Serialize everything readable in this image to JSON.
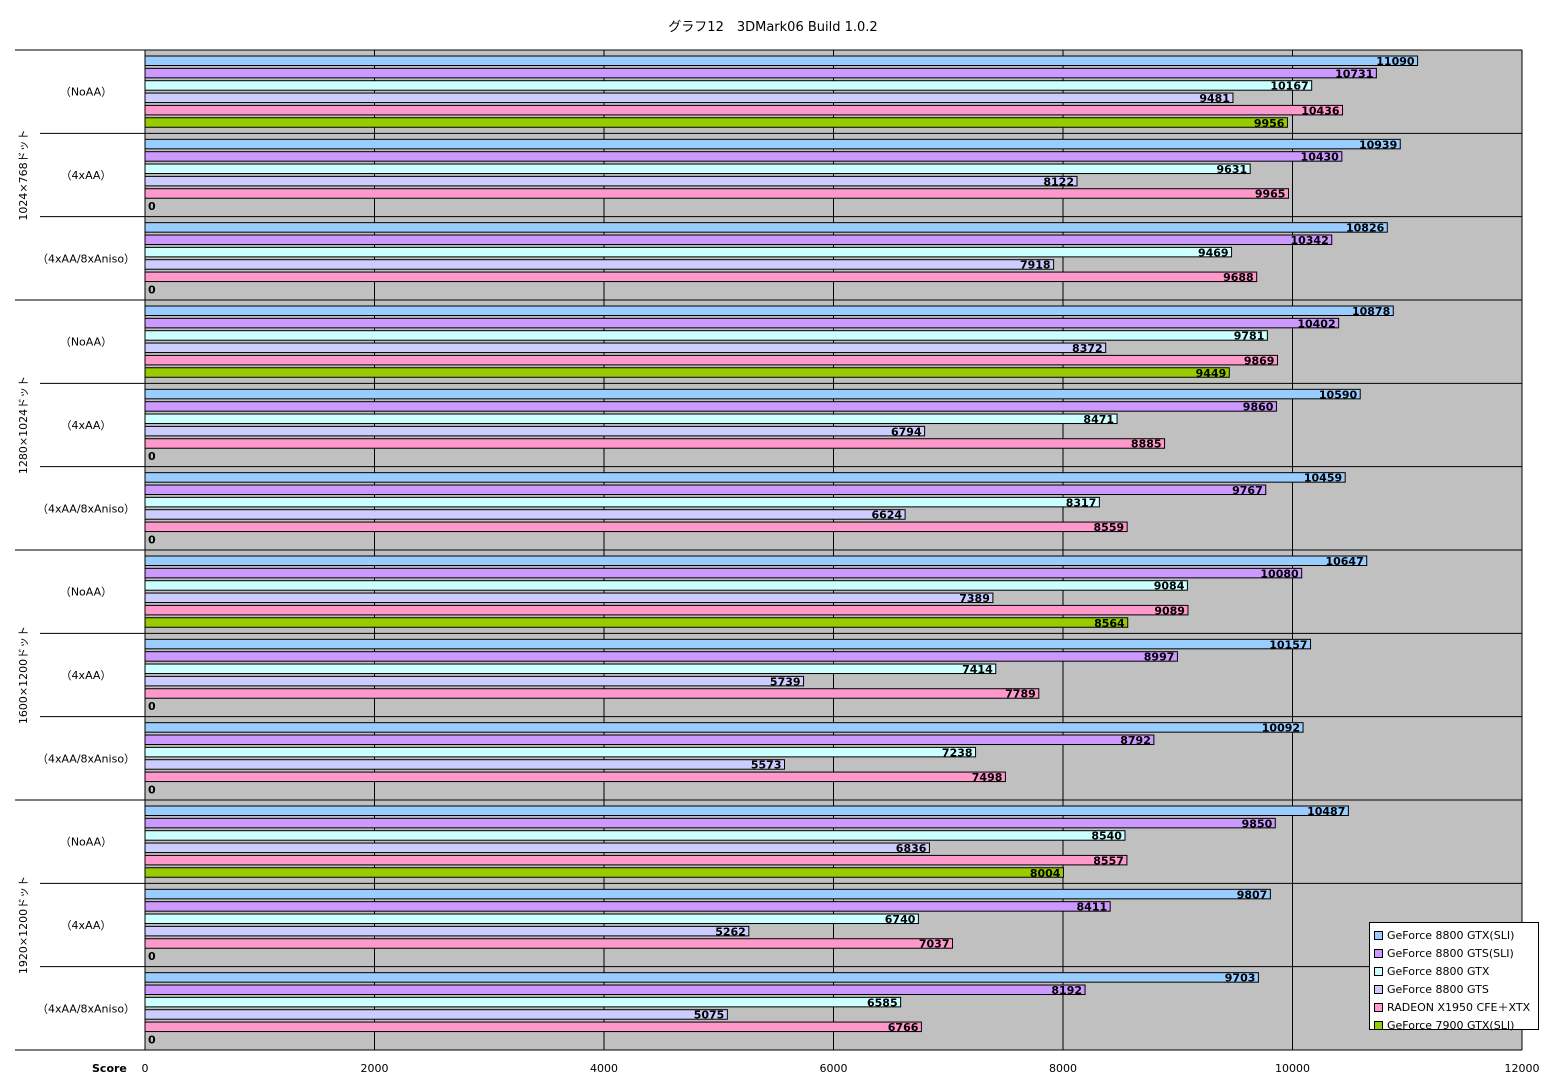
{
  "chart_data": {
    "type": "bar",
    "orientation": "horizontal",
    "title": "グラフ12　3DMark06 Build 1.0.2",
    "xlabel": "Score",
    "xlim": [
      0,
      12000
    ],
    "xticks": [
      0,
      2000,
      4000,
      6000,
      8000,
      10000,
      12000
    ],
    "grid": true,
    "legend_position": "bottom-right",
    "series": [
      {
        "name": "GeForce 8800 GTX(SLI)",
        "color": "#99ccff"
      },
      {
        "name": "GeForce 8800 GTS(SLI)",
        "color": "#cc99ff"
      },
      {
        "name": "GeForce 8800 GTX",
        "color": "#ccffff"
      },
      {
        "name": "GeForce 8800 GTS",
        "color": "#ccccff"
      },
      {
        "name": "RADEON X1950 CFE＋XTX",
        "color": "#ff99cc"
      },
      {
        "name": "GeForce 7900 GTX(SLI)",
        "color": "#99cc00"
      }
    ],
    "resolutions": [
      "1024×768ドット",
      "1280×1024ドット",
      "1600×1200ドット",
      "1920×1200ドット"
    ],
    "groups": [
      {
        "resolution": 0,
        "setting": "（NoAA）",
        "values": [
          11090,
          10731,
          10167,
          9481,
          10436,
          9956
        ]
      },
      {
        "resolution": 0,
        "setting": "（4xAA）",
        "values": [
          10939,
          10430,
          9631,
          8122,
          9965,
          0
        ]
      },
      {
        "resolution": 0,
        "setting": "（4xAA/8xAniso）",
        "values": [
          10826,
          10342,
          9469,
          7918,
          9688,
          0
        ]
      },
      {
        "resolution": 1,
        "setting": "（NoAA）",
        "values": [
          10878,
          10402,
          9781,
          8372,
          9869,
          9449
        ]
      },
      {
        "resolution": 1,
        "setting": "（4xAA）",
        "values": [
          10590,
          9860,
          8471,
          6794,
          8885,
          0
        ]
      },
      {
        "resolution": 1,
        "setting": "（4xAA/8xAniso）",
        "values": [
          10459,
          9767,
          8317,
          6624,
          8559,
          0
        ]
      },
      {
        "resolution": 2,
        "setting": "（NoAA）",
        "values": [
          10647,
          10080,
          9084,
          7389,
          9089,
          8564
        ]
      },
      {
        "resolution": 2,
        "setting": "（4xAA）",
        "values": [
          10157,
          8997,
          7414,
          5739,
          7789,
          0
        ]
      },
      {
        "resolution": 2,
        "setting": "（4xAA/8xAniso）",
        "values": [
          10092,
          8792,
          7238,
          5573,
          7498,
          0
        ]
      },
      {
        "resolution": 3,
        "setting": "（NoAA）",
        "values": [
          10487,
          9850,
          8540,
          6836,
          8557,
          8004
        ]
      },
      {
        "resolution": 3,
        "setting": "（4xAA）",
        "values": [
          9807,
          8411,
          6740,
          5262,
          7037,
          0
        ]
      },
      {
        "resolution": 3,
        "setting": "（4xAA/8xAniso）",
        "values": [
          9703,
          8192,
          6585,
          5075,
          6766,
          0
        ]
      }
    ],
    "plot_background": "#c0c0c0"
  }
}
